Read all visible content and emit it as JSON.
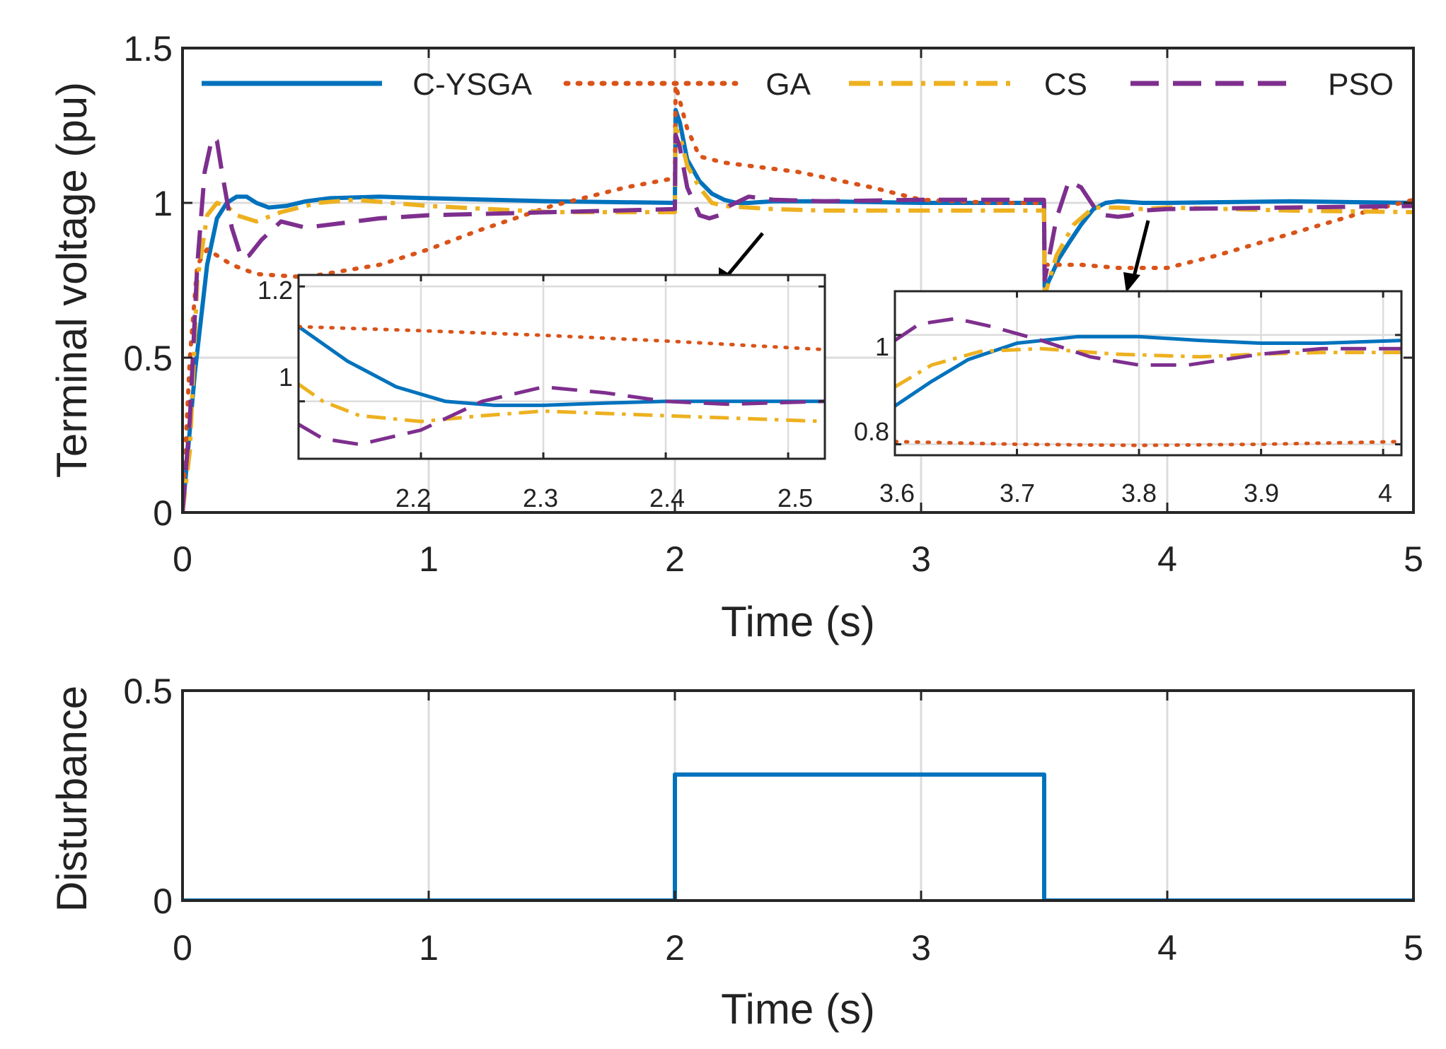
{
  "chart_data": [
    {
      "id": "main",
      "type": "line",
      "title": "",
      "xlabel": "Time (s)",
      "ylabel": "Terminal voltage (pu)",
      "xlim": [
        0,
        5
      ],
      "ylim": [
        0,
        1.5
      ],
      "xticks": [
        0,
        1,
        2,
        3,
        4,
        5
      ],
      "yticks": [
        0,
        0.5,
        1,
        1.5
      ],
      "xtick_labels": [
        "0",
        "1",
        "2",
        "3",
        "4",
        "5"
      ],
      "ytick_labels": [
        "0",
        "0.5",
        "1",
        "1.5"
      ],
      "grid": true,
      "legend": "top",
      "series": [
        {
          "name": "C-YSGA",
          "color": "#0072BD",
          "style": "solid",
          "x": [
            0,
            0.05,
            0.1,
            0.14,
            0.18,
            0.22,
            0.26,
            0.3,
            0.35,
            0.42,
            0.5,
            0.6,
            0.8,
            1.0,
            1.5,
            2.0,
            2.003,
            2.02,
            2.05,
            2.1,
            2.15,
            2.2,
            2.25,
            2.3,
            2.4,
            2.6,
            3.0,
            3.4,
            3.499,
            3.502,
            3.52,
            3.56,
            3.6,
            3.65,
            3.7,
            3.75,
            3.8,
            3.9,
            4.0,
            4.5,
            5.0
          ],
          "y": [
            0,
            0.45,
            0.8,
            0.95,
            1.0,
            1.02,
            1.02,
            1.0,
            0.985,
            0.99,
            1.005,
            1.015,
            1.02,
            1.015,
            1.005,
            1.0,
            1.3,
            1.26,
            1.14,
            1.07,
            1.03,
            1.01,
            1.0,
            1.0,
            1.005,
            1.005,
            1.0,
            1.0,
            1.0,
            0.72,
            0.75,
            0.82,
            0.87,
            0.93,
            0.98,
            1.0,
            1.005,
            1.0,
            1.0,
            1.005,
            1.0
          ]
        },
        {
          "name": "GA",
          "color": "#D95319",
          "style": "dotted",
          "x": [
            0,
            0.03,
            0.06,
            0.1,
            0.2,
            0.3,
            0.5,
            0.8,
            1.0,
            1.2,
            1.5,
            1.8,
            2.0,
            2.003,
            2.02,
            2.05,
            2.1,
            2.2,
            2.5,
            2.8,
            3.0,
            3.3,
            3.499,
            3.502,
            3.55,
            3.65,
            3.8,
            4.0,
            4.2,
            4.5,
            4.8,
            5.0
          ],
          "y": [
            0,
            0.5,
            0.8,
            0.85,
            0.8,
            0.77,
            0.76,
            0.8,
            0.85,
            0.91,
            0.99,
            1.05,
            1.08,
            1.38,
            1.33,
            1.24,
            1.15,
            1.13,
            1.1,
            1.05,
            1.01,
            1.0,
            1.0,
            0.8,
            0.8,
            0.8,
            0.79,
            0.79,
            0.83,
            0.9,
            0.97,
            1.01
          ]
        },
        {
          "name": "CS",
          "color": "#EDB120",
          "style": "dashdot",
          "x": [
            0,
            0.03,
            0.06,
            0.1,
            0.14,
            0.18,
            0.22,
            0.3,
            0.4,
            0.55,
            0.7,
            1.0,
            1.5,
            2.0,
            2.003,
            2.02,
            2.05,
            2.1,
            2.15,
            2.2,
            2.3,
            2.4,
            2.6,
            3.0,
            3.4,
            3.499,
            3.502,
            3.55,
            3.62,
            3.7,
            3.8,
            3.9,
            4.0,
            4.5,
            5.0
          ],
          "y": [
            0,
            0.2,
            0.75,
            0.96,
            1.0,
            0.99,
            0.96,
            0.94,
            0.97,
            1.0,
            1.01,
            0.99,
            0.97,
            0.97,
            1.24,
            1.22,
            1.12,
            1.05,
            1.0,
            0.99,
            0.985,
            0.98,
            0.975,
            0.975,
            0.975,
            0.975,
            0.7,
            0.83,
            0.93,
            0.985,
            0.985,
            0.98,
            0.985,
            0.975,
            0.97
          ]
        },
        {
          "name": "PSO",
          "color": "#7E2F8E",
          "style": "dashed",
          "x": [
            0,
            0.03,
            0.06,
            0.09,
            0.12,
            0.14,
            0.16,
            0.2,
            0.24,
            0.27,
            0.32,
            0.4,
            0.5,
            0.6,
            0.8,
            1.0,
            1.5,
            2.0,
            2.003,
            2.02,
            2.05,
            2.1,
            2.14,
            2.18,
            2.22,
            2.3,
            2.4,
            2.6,
            3.0,
            3.4,
            3.499,
            3.502,
            3.55,
            3.6,
            3.65,
            3.7,
            3.75,
            3.8,
            3.85,
            3.9,
            4.0,
            4.5,
            5.0
          ],
          "y": [
            0,
            0.3,
            0.8,
            1.1,
            1.21,
            1.2,
            1.1,
            0.92,
            0.82,
            0.83,
            0.88,
            0.94,
            0.92,
            0.93,
            0.95,
            0.96,
            0.97,
            0.98,
            1.22,
            1.18,
            1.05,
            0.96,
            0.95,
            0.96,
            0.99,
            1.02,
            1.01,
            1.005,
            1.01,
            1.01,
            1.01,
            0.75,
            0.95,
            1.07,
            1.05,
            0.99,
            0.96,
            0.955,
            0.96,
            0.975,
            0.98,
            0.985,
            0.99
          ]
        }
      ]
    },
    {
      "id": "zoom1",
      "type": "line",
      "xlim": [
        2.1,
        2.53
      ],
      "ylim": [
        0.9,
        1.22
      ],
      "xticks": [
        2.2,
        2.3,
        2.4,
        2.5
      ],
      "yticks": [
        1,
        1.2
      ],
      "xtick_labels": [
        "2.2",
        "2.3",
        "2.4",
        "2.5"
      ],
      "ytick_labels": [
        "1",
        "1.2"
      ],
      "grid": true,
      "series": [
        {
          "name": "C-YSGA",
          "x": [
            2.1,
            2.14,
            2.18,
            2.22,
            2.26,
            2.3,
            2.35,
            2.4,
            2.45,
            2.53
          ],
          "y": [
            1.13,
            1.07,
            1.025,
            1.0,
            0.993,
            0.993,
            0.997,
            1.0,
            1.0,
            1.0
          ]
        },
        {
          "name": "GA",
          "x": [
            2.1,
            2.2,
            2.3,
            2.4,
            2.53
          ],
          "y": [
            1.13,
            1.123,
            1.115,
            1.105,
            1.09
          ]
        },
        {
          "name": "CS",
          "x": [
            2.1,
            2.12,
            2.15,
            2.2,
            2.25,
            2.3,
            2.4,
            2.53
          ],
          "y": [
            1.03,
            1.0,
            0.975,
            0.965,
            0.975,
            0.983,
            0.975,
            0.965
          ]
        },
        {
          "name": "PSO",
          "x": [
            2.1,
            2.12,
            2.15,
            2.2,
            2.25,
            2.3,
            2.35,
            2.4,
            2.45,
            2.53
          ],
          "y": [
            0.96,
            0.935,
            0.925,
            0.95,
            1.0,
            1.025,
            1.015,
            1.0,
            0.995,
            1.0
          ]
        }
      ]
    },
    {
      "id": "zoom2",
      "type": "line",
      "xlim": [
        3.6,
        4.015
      ],
      "ylim": [
        0.78,
        1.08
      ],
      "xticks": [
        3.6,
        3.7,
        3.8,
        3.9,
        4
      ],
      "yticks": [
        0.8,
        1
      ],
      "xtick_labels": [
        "3.6",
        "3.7",
        "3.8",
        "3.9",
        "4"
      ],
      "ytick_labels": [
        "0.8",
        "1"
      ],
      "grid": true,
      "series": [
        {
          "name": "C-YSGA",
          "x": [
            3.6,
            3.63,
            3.66,
            3.7,
            3.75,
            3.8,
            3.85,
            3.9,
            3.95,
            4.015
          ],
          "y": [
            0.87,
            0.915,
            0.955,
            0.985,
            0.997,
            0.997,
            0.99,
            0.985,
            0.985,
            0.99
          ]
        },
        {
          "name": "GA",
          "x": [
            3.6,
            3.7,
            3.8,
            3.9,
            4.015
          ],
          "y": [
            0.805,
            0.8,
            0.798,
            0.8,
            0.805
          ]
        },
        {
          "name": "CS",
          "x": [
            3.6,
            3.63,
            3.67,
            3.72,
            3.78,
            3.85,
            3.9,
            3.95,
            4.015
          ],
          "y": [
            0.905,
            0.945,
            0.97,
            0.975,
            0.965,
            0.96,
            0.965,
            0.968,
            0.968
          ]
        },
        {
          "name": "PSO",
          "x": [
            3.6,
            3.62,
            3.65,
            3.68,
            3.72,
            3.76,
            3.8,
            3.84,
            3.9,
            3.95,
            4.015
          ],
          "y": [
            0.99,
            1.02,
            1.03,
            1.015,
            0.99,
            0.96,
            0.945,
            0.945,
            0.965,
            0.975,
            0.975
          ]
        }
      ]
    },
    {
      "id": "disturbance",
      "type": "line",
      "title": "",
      "xlabel": "Time (s)",
      "ylabel": "Disturbance",
      "xlim": [
        0,
        5
      ],
      "ylim": [
        0,
        0.5
      ],
      "xticks": [
        0,
        1,
        2,
        3,
        4,
        5
      ],
      "yticks": [
        0,
        0.5
      ],
      "xtick_labels": [
        "0",
        "1",
        "2",
        "3",
        "4",
        "5"
      ],
      "ytick_labels": [
        "0",
        "0.5"
      ],
      "grid": true,
      "series": [
        {
          "name": "Disturbance",
          "color": "#0072BD",
          "style": "solid",
          "x": [
            0,
            2.0,
            2.0,
            3.5,
            3.5,
            5.0
          ],
          "y": [
            0,
            0,
            0.3,
            0.3,
            0,
            0
          ]
        }
      ]
    }
  ]
}
